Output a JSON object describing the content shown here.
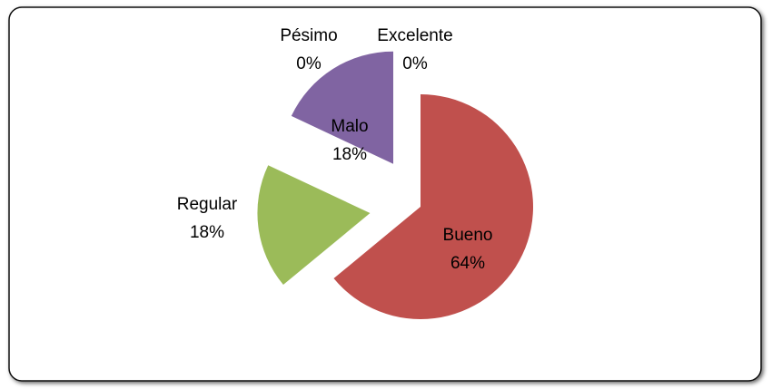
{
  "chart_data": {
    "type": "pie",
    "categories": [
      "Excelente",
      "Bueno",
      "Regular",
      "Malo",
      "Pésimo"
    ],
    "values": [
      0,
      64,
      18,
      18,
      0
    ],
    "value_labels": [
      "0%",
      "64%",
      "18%",
      "18%",
      "0%"
    ],
    "colors": [
      "#4f81bd",
      "#c0504d",
      "#9bbb59",
      "#8064a2",
      "#4bacc6"
    ]
  }
}
